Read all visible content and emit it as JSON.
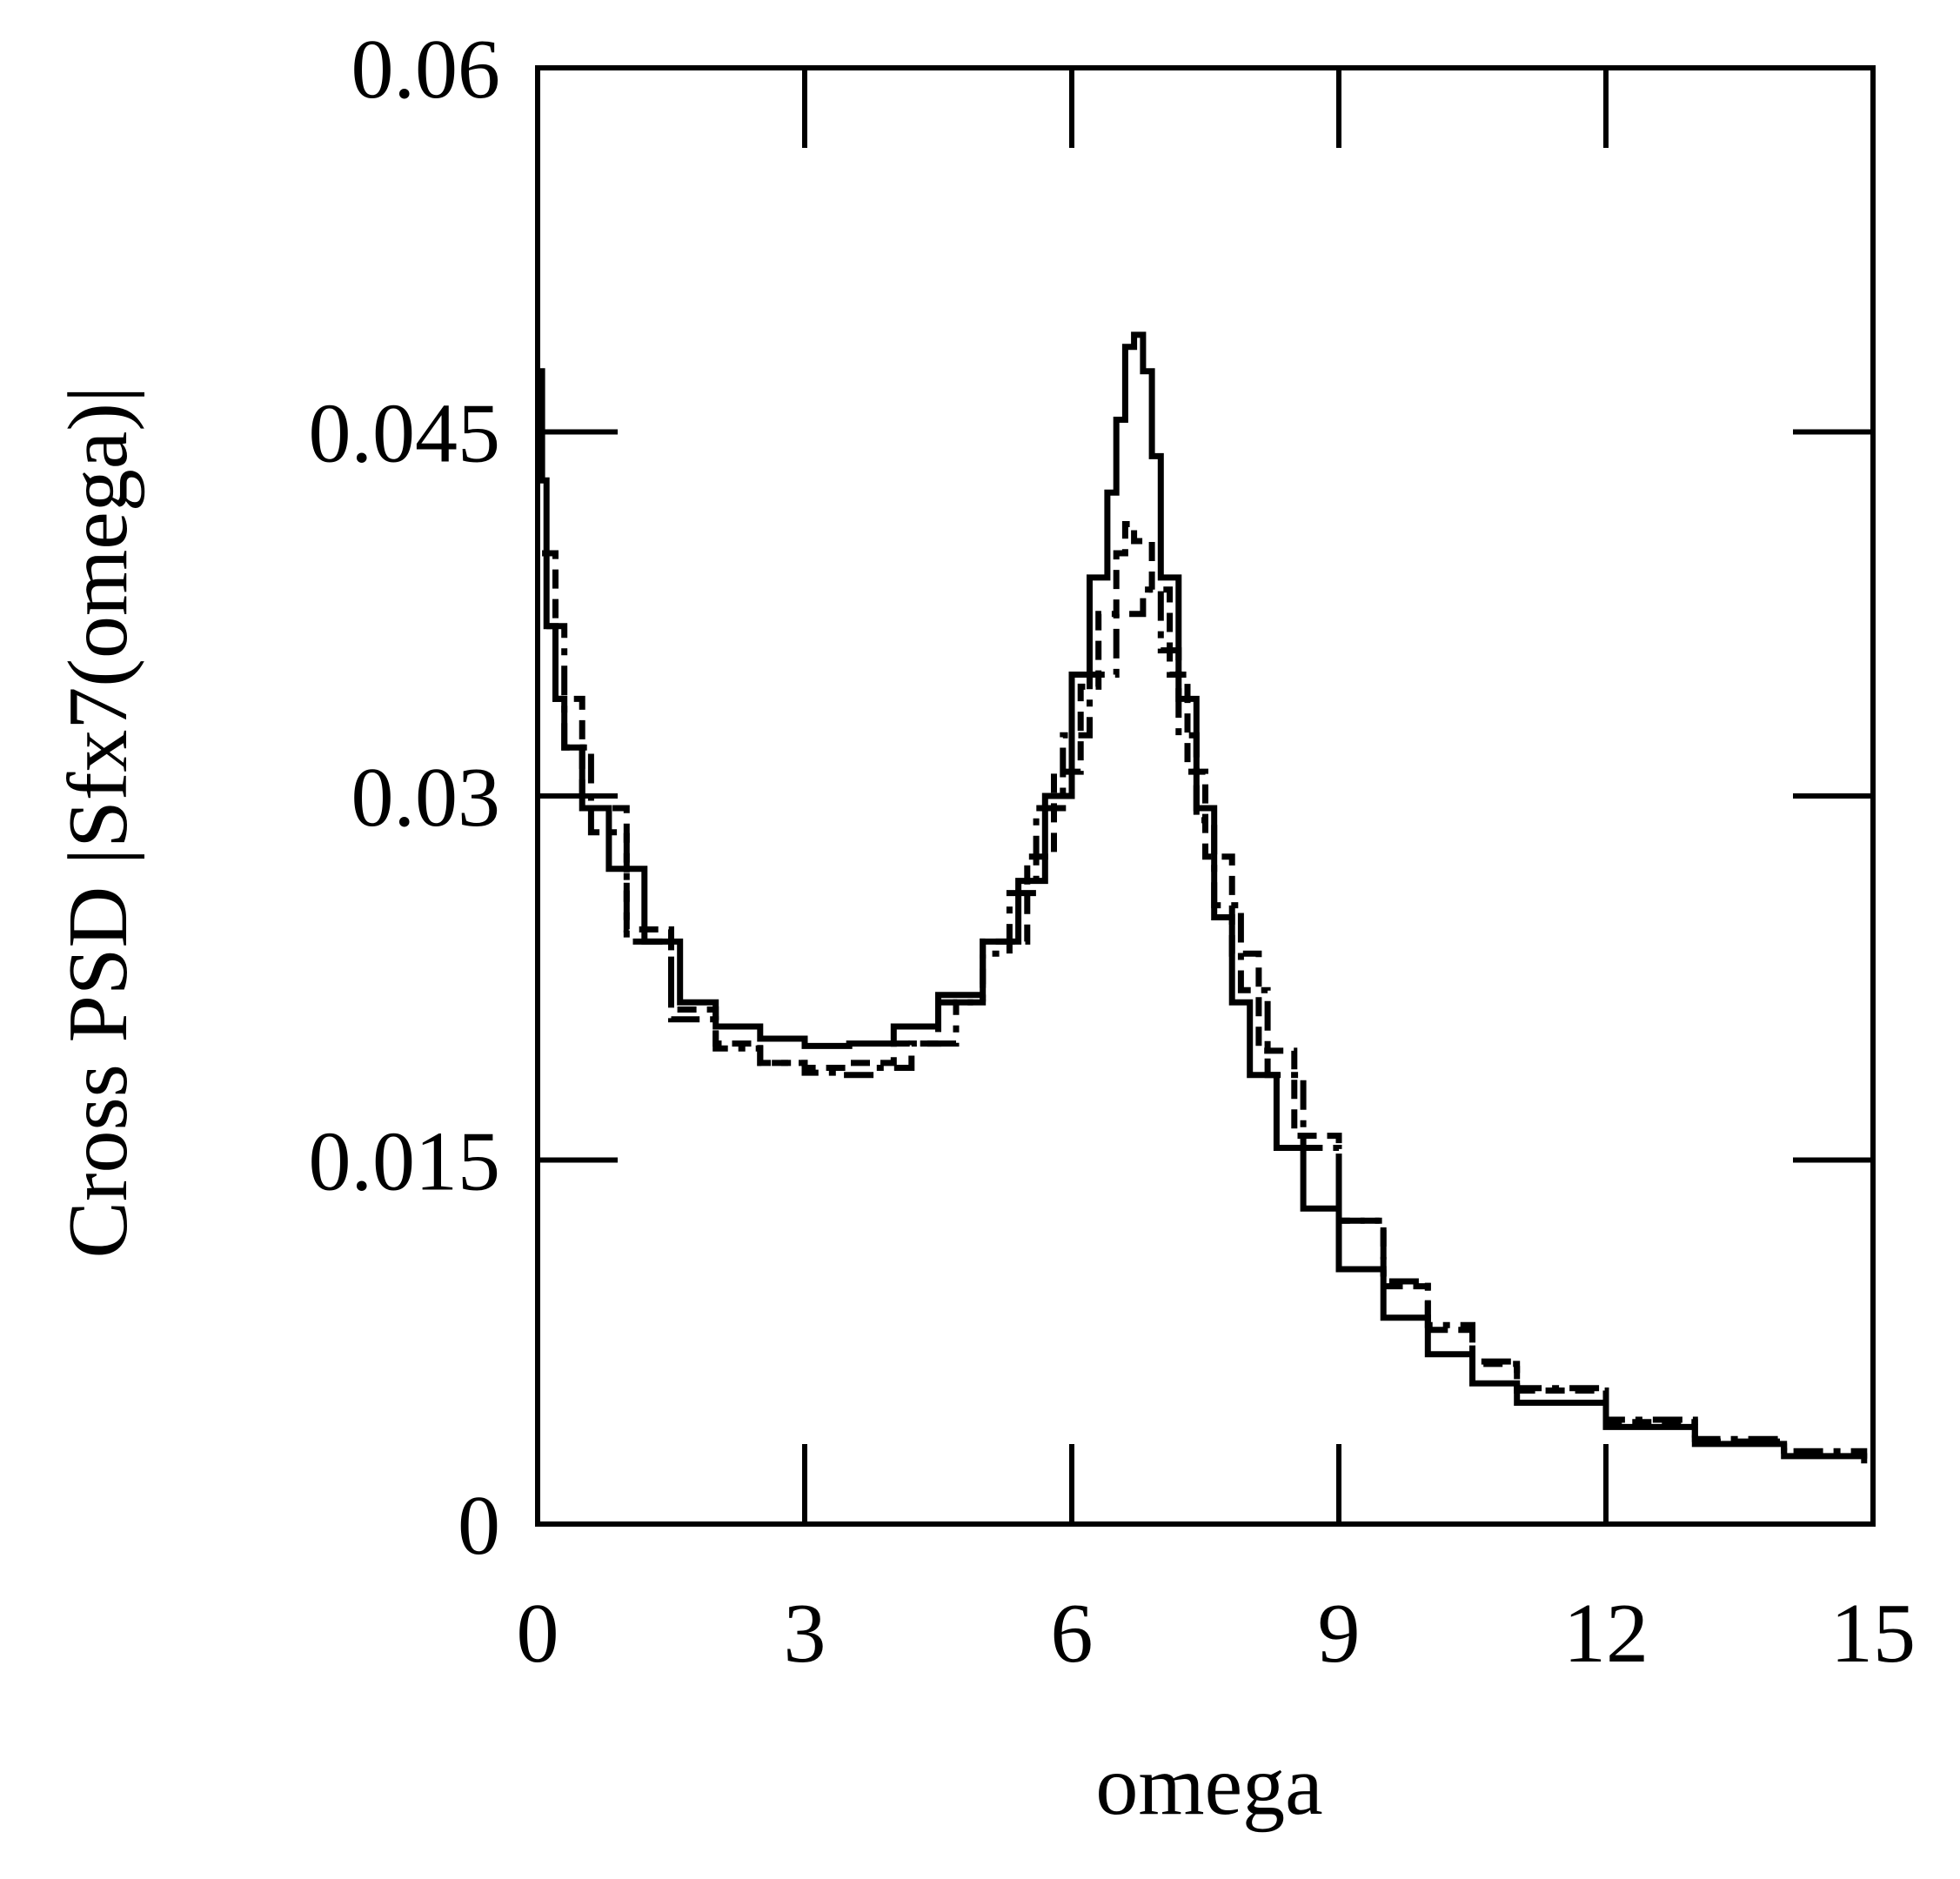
{
  "chart_data": {
    "type": "line",
    "title": "",
    "xlabel": "omega",
    "ylabel": "Cross PSD |Sfx7(omega)|",
    "xlim": [
      0,
      15
    ],
    "ylim": [
      0,
      0.06
    ],
    "xticks": [
      0,
      3,
      6,
      9,
      12,
      15
    ],
    "xtick_labels": [
      "0",
      "3",
      "6",
      "9",
      "12",
      "15"
    ],
    "yticks": [
      0,
      0.015,
      0.03,
      0.045,
      0.06
    ],
    "ytick_labels": [
      "0",
      "0.015",
      "0.03",
      "0.045",
      "0.06"
    ],
    "grid": false,
    "series": [
      {
        "name": "solid",
        "style": "solid",
        "x": [
          0,
          0.05,
          0.1,
          0.2,
          0.3,
          0.5,
          0.8,
          1.2,
          1.6,
          2.0,
          2.5,
          3.0,
          3.5,
          4.0,
          4.5,
          5.0,
          5.4,
          5.7,
          6.0,
          6.2,
          6.4,
          6.5,
          6.6,
          6.7,
          6.8,
          6.9,
          7.0,
          7.2,
          7.4,
          7.6,
          7.8,
          8.0,
          8.3,
          8.6,
          9.0,
          9.5,
          10.0,
          10.5,
          11.0,
          12.0,
          13.0,
          14.0,
          14.9
        ],
        "y": [
          0.0475,
          0.043,
          0.037,
          0.034,
          0.032,
          0.0295,
          0.027,
          0.024,
          0.0215,
          0.0205,
          0.02,
          0.0197,
          0.0198,
          0.0205,
          0.0218,
          0.024,
          0.0265,
          0.03,
          0.035,
          0.039,
          0.0425,
          0.0455,
          0.0485,
          0.049,
          0.0475,
          0.044,
          0.039,
          0.034,
          0.0295,
          0.025,
          0.0215,
          0.0185,
          0.0155,
          0.013,
          0.0105,
          0.0085,
          0.007,
          0.0058,
          0.005,
          0.004,
          0.0033,
          0.0028,
          0.0025
        ]
      },
      {
        "name": "dashed",
        "style": "dashed",
        "x": [
          0.05,
          0.2,
          0.5,
          1.0,
          1.5,
          2.0,
          2.5,
          3.0,
          3.5,
          4.0,
          4.5,
          5.0,
          5.5,
          5.8,
          6.1,
          6.3,
          6.5,
          6.6,
          6.7,
          6.9,
          7.1,
          7.3,
          7.5,
          7.8,
          8.1,
          8.5,
          9.0,
          9.5,
          10.0,
          10.5,
          11.0,
          12.0,
          13.0,
          14.0
        ],
        "y": [
          0.04,
          0.034,
          0.0295,
          0.0245,
          0.0212,
          0.0198,
          0.019,
          0.0188,
          0.019,
          0.0198,
          0.0215,
          0.024,
          0.0275,
          0.031,
          0.0345,
          0.0375,
          0.04,
          0.0412,
          0.0405,
          0.0385,
          0.035,
          0.031,
          0.0275,
          0.0235,
          0.0195,
          0.016,
          0.0125,
          0.0098,
          0.008,
          0.0066,
          0.0055,
          0.0042,
          0.0034,
          0.0029
        ]
      },
      {
        "name": "dash-dot",
        "style": "dashdot",
        "x": [
          0.1,
          0.3,
          0.6,
          1.0,
          1.5,
          2.0,
          2.5,
          3.0,
          3.4,
          3.8,
          4.2,
          4.7,
          5.0,
          5.3,
          5.6,
          5.9,
          6.2,
          6.5,
          6.8,
          7.0,
          7.2,
          7.4,
          7.6,
          7.9,
          8.2,
          8.6,
          9.0,
          9.5,
          10.0,
          10.5,
          11.0,
          12.0,
          13.0,
          14.0,
          14.9
        ],
        "y": [
          0.037,
          0.032,
          0.0285,
          0.024,
          0.0208,
          0.0196,
          0.019,
          0.0186,
          0.0185,
          0.0188,
          0.0198,
          0.0215,
          0.0235,
          0.026,
          0.0295,
          0.0325,
          0.035,
          0.0375,
          0.0385,
          0.036,
          0.0325,
          0.029,
          0.0255,
          0.022,
          0.0185,
          0.0155,
          0.0125,
          0.01,
          0.0082,
          0.0067,
          0.0056,
          0.0043,
          0.0035,
          0.003,
          0.0027
        ]
      }
    ]
  }
}
